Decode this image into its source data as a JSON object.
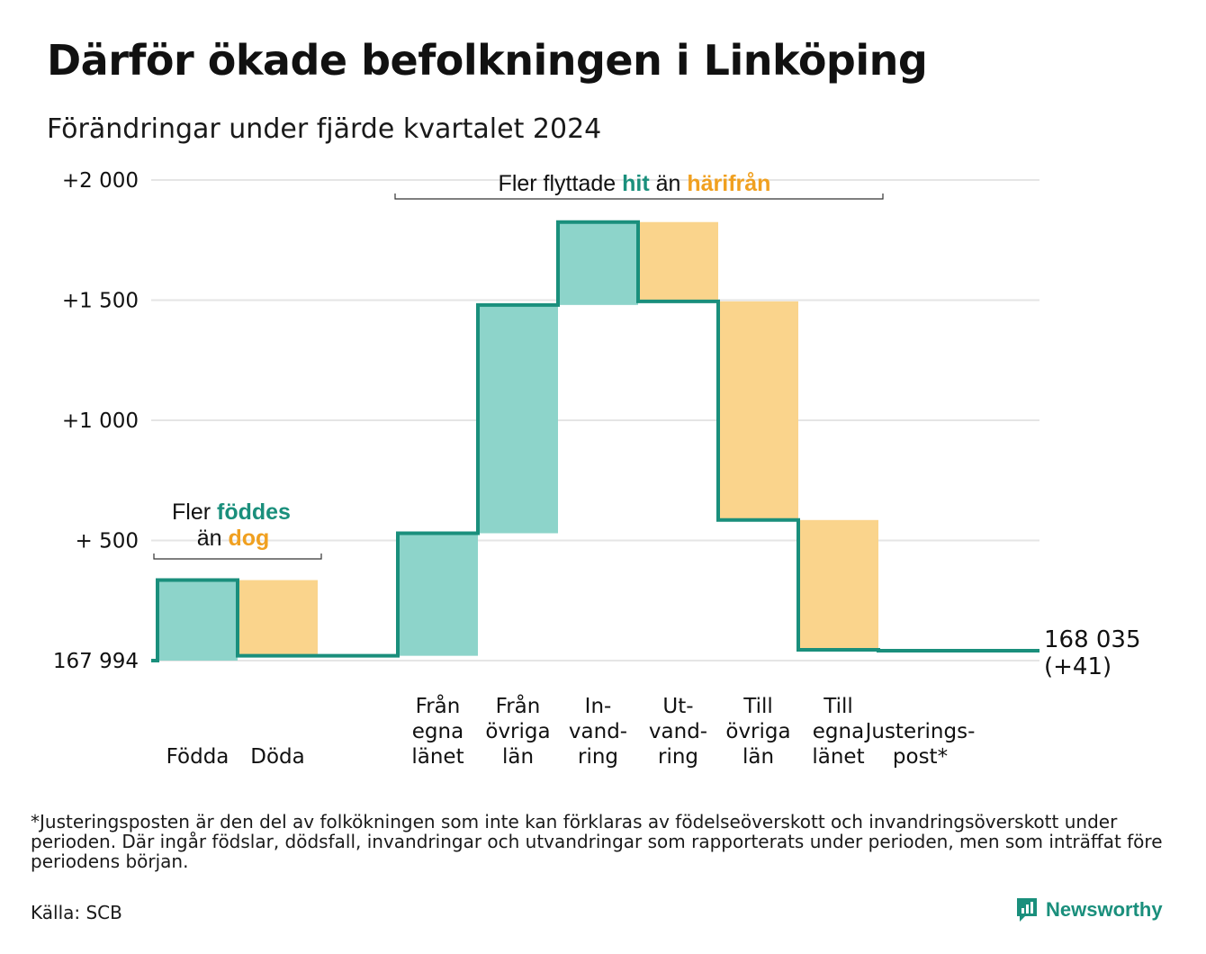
{
  "title": "Därför ökade befolkningen i Linköping",
  "subtitle": "Förändringar under fjärde kvartalet 2024",
  "colors": {
    "inflow": "#8dd4ca",
    "outflow": "#fad48c",
    "line": "#1a8f7c",
    "grid": "#e5e5e5",
    "text": "#111111",
    "teal_text": "#1a8f7c",
    "orange_text": "#f0a020"
  },
  "chart_data": {
    "type": "waterfall",
    "baseline_value": 167994,
    "baseline_label": "167 994",
    "y_ticks": [
      {
        "value": 500,
        "label": "+  500"
      },
      {
        "value": 1000,
        "label": "+1 000"
      },
      {
        "value": 1500,
        "label": "+1 500"
      },
      {
        "value": 2000,
        "label": "+2 000"
      }
    ],
    "ylim": [
      0,
      2000
    ],
    "grid": true,
    "steps": [
      {
        "id": "fodda",
        "label_lines": [
          "Födda"
        ],
        "from": 0,
        "to": 335,
        "kind": "in"
      },
      {
        "id": "doda",
        "label_lines": [
          "Döda"
        ],
        "from": 335,
        "to": 20,
        "kind": "out"
      },
      {
        "id": "gap",
        "label_lines": [],
        "from": 20,
        "to": 20,
        "kind": "none"
      },
      {
        "id": "fran-egna",
        "label_lines": [
          "Från",
          "egna",
          "länet"
        ],
        "from": 20,
        "to": 530,
        "kind": "in"
      },
      {
        "id": "fran-ovriga",
        "label_lines": [
          "Från",
          "övriga",
          "län"
        ],
        "from": 530,
        "to": 1480,
        "kind": "in"
      },
      {
        "id": "invandring",
        "label_lines": [
          "In-",
          "vand-",
          "ring"
        ],
        "from": 1480,
        "to": 1825,
        "kind": "in"
      },
      {
        "id": "utvandring",
        "label_lines": [
          "Ut-",
          "vand-",
          "ring"
        ],
        "from": 1825,
        "to": 1495,
        "kind": "out"
      },
      {
        "id": "till-ovriga",
        "label_lines": [
          "Till",
          "övriga",
          "län"
        ],
        "from": 1495,
        "to": 585,
        "kind": "out"
      },
      {
        "id": "till-egna",
        "label_lines": [
          "Till",
          "egna",
          "länet"
        ],
        "from": 585,
        "to": 45,
        "kind": "out"
      },
      {
        "id": "justering",
        "label_lines": [
          "Justerings-",
          "post*"
        ],
        "from": 45,
        "to": 41,
        "kind": "none"
      }
    ],
    "end_label_lines": [
      "168 035",
      "(+41)"
    ],
    "annotations": {
      "birth": {
        "lines": [
          [
            "Fler ",
            "föddes"
          ],
          [
            "än ",
            "dog"
          ]
        ]
      },
      "migration": {
        "parts": [
          "Fler flyttade ",
          "hit",
          "  än ",
          "härifrån"
        ]
      }
    }
  },
  "footnote": "*Justeringsposten är den del av folkökningen som inte kan förklaras av födelseöverskott och invandringsöverskott under perioden. Där ingår födslar, dödsfall, invandringar och utvandringar som rapporterats under perioden, men som inträffat före periodens början.",
  "source": "Källa: SCB",
  "brand": {
    "name": "Newsworthy",
    "icon": "newsworthy-logo-icon"
  }
}
